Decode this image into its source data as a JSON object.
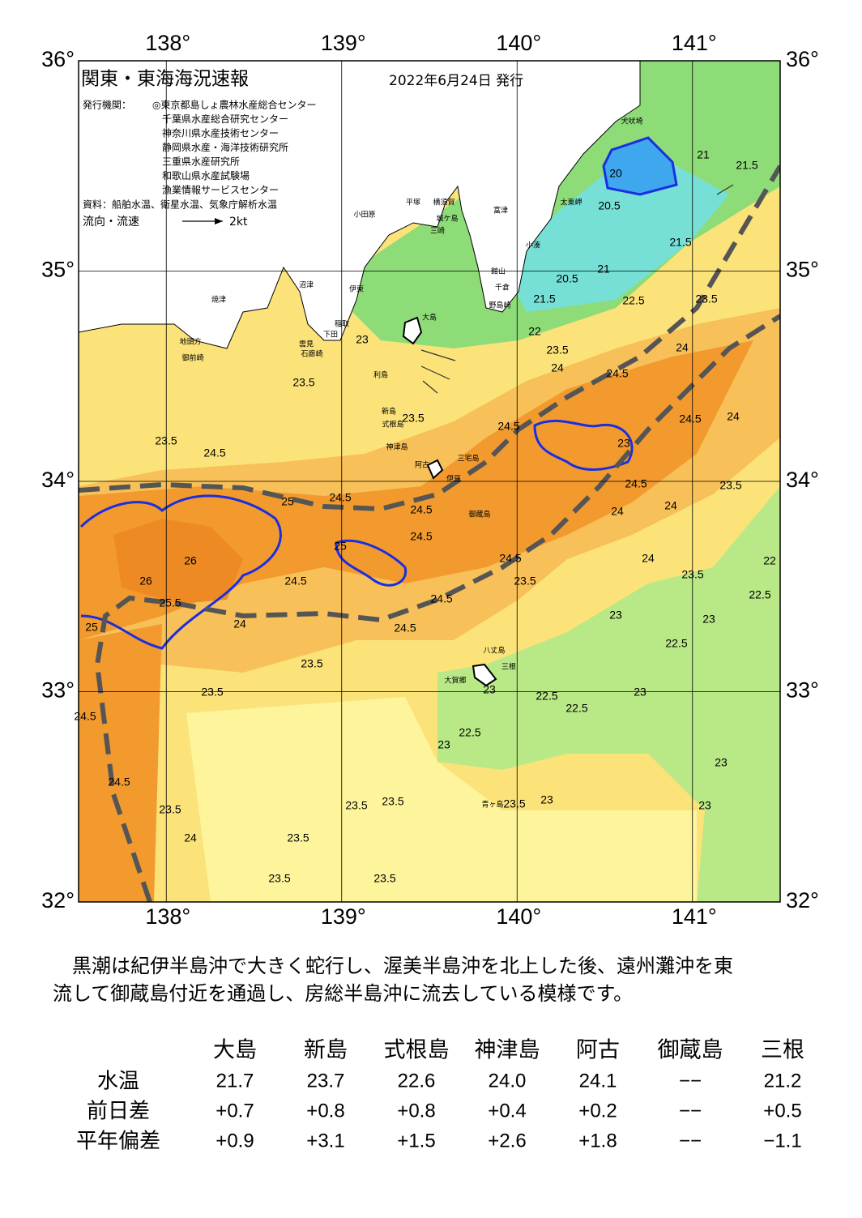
{
  "map": {
    "title": "関東・東海海況速報",
    "date": "2022年6月24日 発行",
    "issuer_label": "発行機関：",
    "issuers": [
      "◎東京都島しょ農林水産総合センター",
      "千葉県水産総合研究センター",
      "神奈川県水産技術センター",
      "静岡県水産・海洋技術研究所",
      "三重県水産研究所",
      "和歌山県水産試験場",
      "漁業情報サービスセンター"
    ],
    "source": "資料：船舶水温、衛星水温、気象庁解析水温",
    "legend_label": "流向・流速",
    "legend_speed": "2kt",
    "lon_ticks": [
      {
        "value": 138,
        "label": "138°"
      },
      {
        "value": 139,
        "label": "139°"
      },
      {
        "value": 140,
        "label": "140°"
      },
      {
        "value": 141,
        "label": "141°"
      }
    ],
    "lat_ticks": [
      {
        "value": 36,
        "label": "36°"
      },
      {
        "value": 35,
        "label": "35°"
      },
      {
        "value": 34,
        "label": "34°"
      },
      {
        "value": 33,
        "label": "33°"
      },
      {
        "value": 32,
        "label": "32°"
      }
    ],
    "lon_range": [
      137.5,
      141.5
    ],
    "lat_range": [
      32,
      36
    ],
    "place_names": [
      "犬吠埼",
      "太東岬",
      "小湊",
      "平塚",
      "横須賀",
      "城ケ島",
      "三崎",
      "富津",
      "館山",
      "千倉",
      "野島崎",
      "小田原",
      "沼津",
      "伊東",
      "稲取",
      "下田",
      "雲見",
      "石廊崎",
      "焼津",
      "地頭方",
      "御前崎",
      "大島",
      "利島",
      "新島",
      "式根島",
      "神津島",
      "三宅島",
      "阿古",
      "伊豆",
      "御蔵島",
      "八丈島",
      "三根",
      "大賀郷",
      "青ヶ島"
    ],
    "contour_labels": [
      "21",
      "21.5",
      "20",
      "20.5",
      "21.5",
      "21",
      "21.5",
      "20.5",
      "22.5",
      "23.5",
      "22",
      "23.5",
      "24",
      "24.5",
      "24",
      "24.5",
      "24",
      "23.5",
      "23",
      "23.5",
      "24.5",
      "23",
      "24.5",
      "23.5",
      "24",
      "24",
      "24.5",
      "24.5",
      "24.5",
      "23.5",
      "24",
      "22",
      "22.5",
      "23.5",
      "23",
      "23",
      "22.5",
      "26",
      "26",
      "25",
      "25",
      "24.5",
      "24.5",
      "25",
      "25.5",
      "24",
      "24.5",
      "23.5",
      "23.5",
      "23.5",
      "24.5",
      "24.5",
      "23",
      "22.5",
      "22.5",
      "23",
      "22.5",
      "23",
      "23.5",
      "23",
      "23",
      "23",
      "24.5",
      "23.5",
      "24",
      "23.5",
      "23.5",
      "23.5",
      "23.5",
      "23.5",
      "24.5"
    ]
  },
  "description": [
    "　黒潮は紀伊半島沖で大きく蛇行し、渥美半島沖を北上した後、遠州灘沖を東",
    "流して御蔵島付近を通過し、房総半島沖に流去している模様です。"
  ],
  "table": {
    "columns": [
      "大島",
      "新島",
      "式根島",
      "神津島",
      "阿古",
      "御蔵島",
      "三根"
    ],
    "rows": [
      {
        "label": "水温",
        "values": [
          "21.7",
          "23.7",
          "22.6",
          "24.0",
          "24.1",
          "−−",
          "21.2"
        ]
      },
      {
        "label": "前日差",
        "values": [
          "+0.7",
          "+0.8",
          "+0.8",
          "+0.4",
          "+0.2",
          "−−",
          "+0.5"
        ]
      },
      {
        "label": "平年偏差",
        "values": [
          "+0.9",
          "+3.1",
          "+1.5",
          "+2.6",
          "+1.8",
          "−−",
          "−1.1"
        ]
      }
    ]
  }
}
